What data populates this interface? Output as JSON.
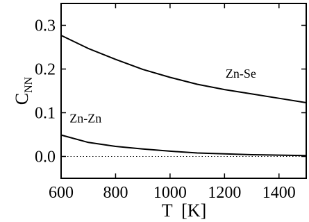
{
  "chart_data": {
    "type": "line",
    "title": "",
    "xlabel": "T  [K]",
    "ylabel": {
      "main": "C",
      "sub": "NN"
    },
    "xlim": [
      600,
      1500
    ],
    "ylim": [
      -0.05,
      0.35
    ],
    "xticks": [
      600,
      800,
      1000,
      1200,
      1400
    ],
    "yticks": [
      0.0,
      0.1,
      0.2,
      0.3
    ],
    "ytick_labels": [
      "0.0",
      "0.1",
      "0.2",
      "0.3"
    ],
    "grid": false,
    "series": [
      {
        "name": "Zn-Se",
        "x": [
          600,
          700,
          800,
          900,
          1000,
          1100,
          1200,
          1300,
          1400,
          1500
        ],
        "y": [
          0.277,
          0.247,
          0.222,
          0.199,
          0.181,
          0.165,
          0.153,
          0.143,
          0.133,
          0.123
        ]
      },
      {
        "name": "Zn-Zn",
        "x": [
          600,
          700,
          800,
          900,
          1000,
          1100,
          1200,
          1300,
          1400,
          1500
        ],
        "y": [
          0.049,
          0.032,
          0.023,
          0.017,
          0.012,
          0.008,
          0.006,
          0.004,
          0.003,
          0.002
        ]
      }
    ],
    "reference_line": {
      "y": 0.0,
      "style": "dotted"
    },
    "annotations": [
      {
        "text": "Zn-Se",
        "x": 1260,
        "y": 0.18
      },
      {
        "text": "Zn-Zn",
        "x": 690,
        "y": 0.078
      }
    ]
  }
}
